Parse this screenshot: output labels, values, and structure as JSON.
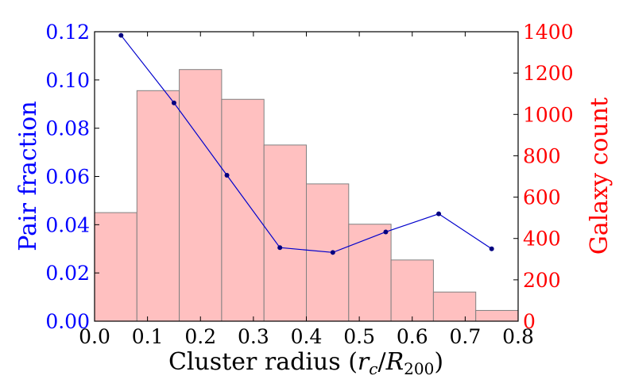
{
  "chart_data": {
    "type": "bar+line",
    "xlabel": "Cluster radius",
    "xlabel_math": {
      "open": "(",
      "var": "r",
      "sub1": "c",
      "slash": "/",
      "var2": "R",
      "sub2": "200",
      "close": ")"
    },
    "ylabel_left": "Pair fraction",
    "ylabel_right": "Galaxy count",
    "xlim": [
      0.0,
      0.8
    ],
    "ylim_left": [
      0.0,
      0.12
    ],
    "ylim_right": [
      0,
      1400
    ],
    "x_ticks": [
      "0.0",
      "0.1",
      "0.2",
      "0.3",
      "0.4",
      "0.5",
      "0.6",
      "0.7",
      "0.8"
    ],
    "y_left_ticks": [
      "0.00",
      "0.02",
      "0.04",
      "0.06",
      "0.08",
      "0.10",
      "0.12"
    ],
    "y_right_ticks": [
      "0",
      "200",
      "400",
      "600",
      "800",
      "1000",
      "1200",
      "1400"
    ],
    "histogram": {
      "name": "Galaxy count",
      "bin_edges": [
        0.0,
        0.08,
        0.16,
        0.24,
        0.32,
        0.4,
        0.48,
        0.56,
        0.64,
        0.72,
        0.8
      ],
      "counts": [
        525,
        1115,
        1217,
        1073,
        852,
        664,
        469,
        296,
        141,
        52
      ],
      "color": "#ffc0c0",
      "edge_color": "#808080"
    },
    "line": {
      "name": "Pair fraction",
      "x": [
        0.05,
        0.15,
        0.25,
        0.35,
        0.45,
        0.55,
        0.65,
        0.75
      ],
      "y": [
        0.1185,
        0.0905,
        0.0605,
        0.0305,
        0.0285,
        0.037,
        0.0445,
        0.03
      ],
      "color": "#0000cc",
      "marker_color": "#000080"
    },
    "colors": {
      "left_axis": "#0000ff",
      "right_axis": "#ff0000",
      "x_axis": "#000000"
    }
  }
}
